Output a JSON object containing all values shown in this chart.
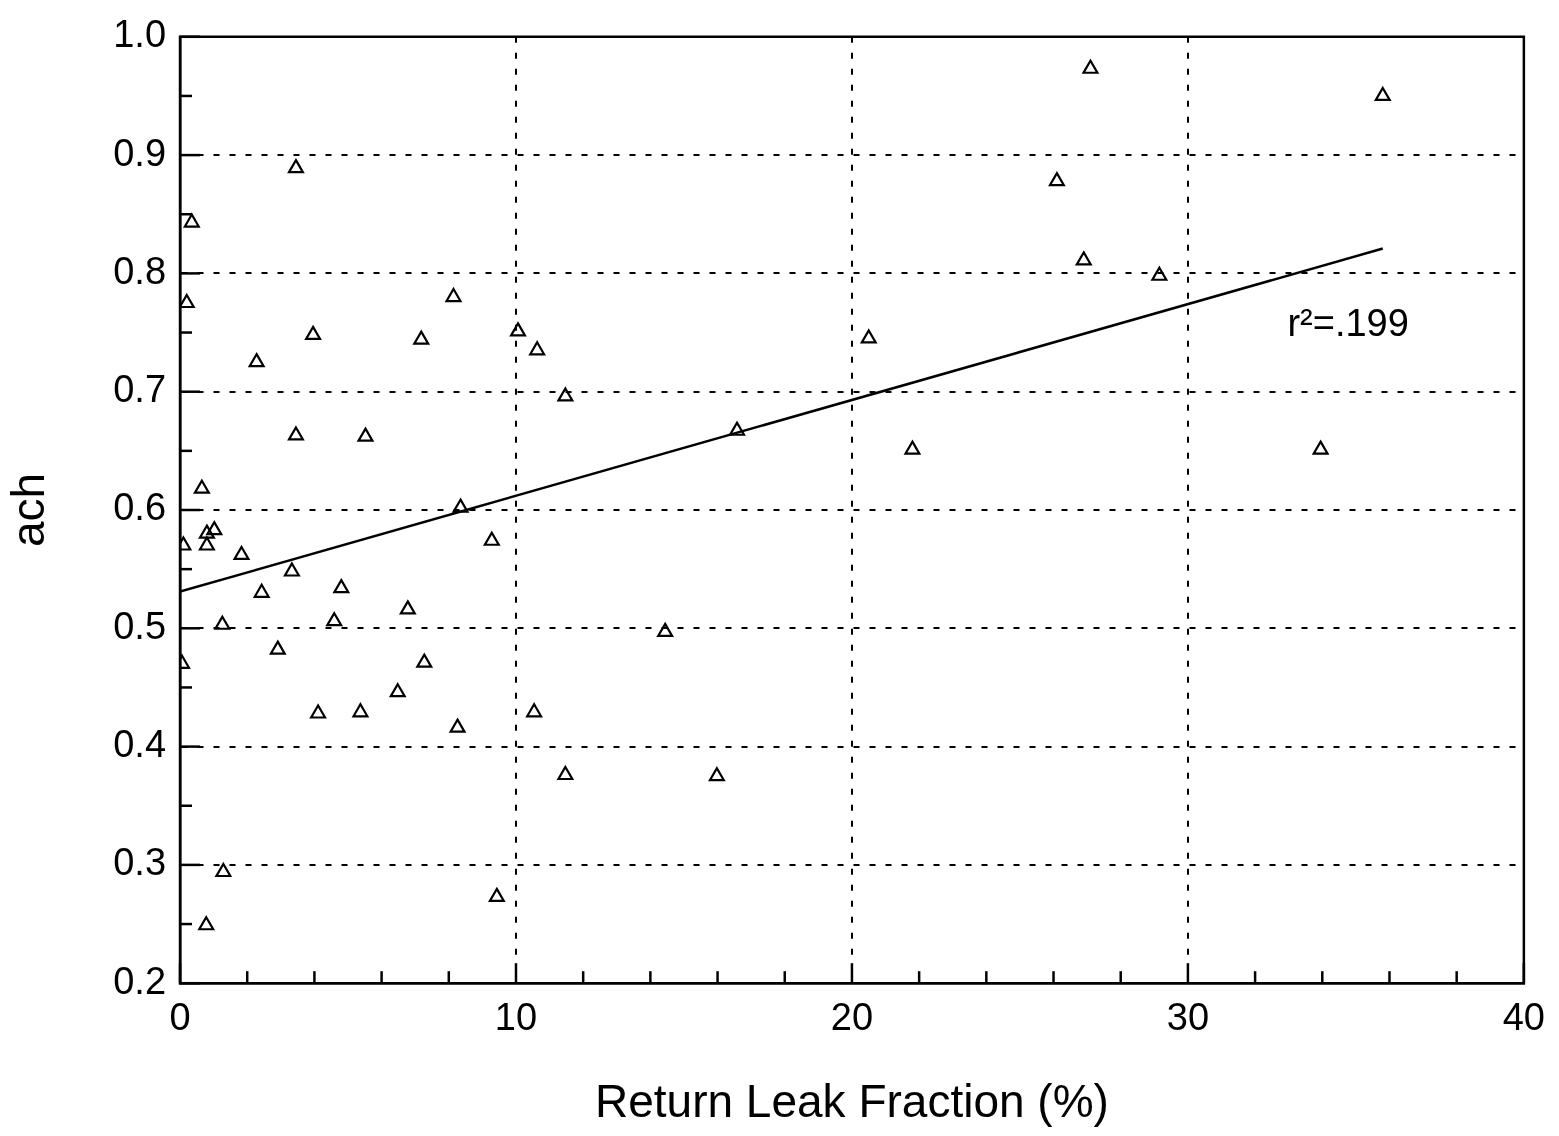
{
  "chart_data": {
    "type": "scatter",
    "xlabel": "Return Leak Fraction (%)",
    "ylabel": "ach",
    "xlim": [
      0,
      40
    ],
    "ylim": [
      0.2,
      1.0
    ],
    "xticks": [
      0,
      {
        "value": 2,
        "label": null
      },
      {
        "value": 4,
        "label": null
      },
      {
        "value": 6,
        "label": null
      },
      {
        "value": 8,
        "label": null
      },
      10,
      {
        "value": 12,
        "label": null
      },
      {
        "value": 14,
        "label": null
      },
      {
        "value": 16,
        "label": null
      },
      {
        "value": 18,
        "label": null
      },
      20,
      {
        "value": 22,
        "label": null
      },
      {
        "value": 24,
        "label": null
      },
      {
        "value": 26,
        "label": null
      },
      {
        "value": 28,
        "label": null
      },
      30,
      {
        "value": 32,
        "label": null
      },
      {
        "value": 34,
        "label": null
      },
      {
        "value": 36,
        "label": null
      },
      {
        "value": 38,
        "label": null
      },
      40
    ],
    "yticks": [
      0.2,
      {
        "value": 0.25,
        "label": null
      },
      0.3,
      {
        "value": 0.35,
        "label": null
      },
      0.4,
      {
        "value": 0.45,
        "label": null
      },
      0.5,
      {
        "value": 0.55,
        "label": null
      },
      0.6,
      {
        "value": 0.65,
        "label": null
      },
      0.7,
      {
        "value": 0.75,
        "label": null
      },
      0.8,
      {
        "value": 0.85,
        "label": null
      },
      0.9,
      {
        "value": 0.95,
        "label": null
      },
      {
        "value": 1.0,
        "label": "1.0"
      }
    ],
    "grid": true,
    "legend": false,
    "marker": "triangle",
    "series": [
      {
        "color": "#000000",
        "x": [
          0.06,
          0.1,
          0.2,
          0.35,
          0.65,
          0.8,
          0.8,
          1.02,
          1.26,
          1.29,
          0.78,
          1.83,
          2.28,
          2.43,
          2.91,
          3.33,
          3.45,
          3.45,
          3.96,
          4.11,
          4.59,
          4.8,
          5.37,
          5.52,
          6.48,
          6.78,
          7.18,
          7.27,
          8.14,
          8.26,
          8.35,
          9.28,
          9.43,
          10.06,
          10.54,
          10.63,
          11.47,
          11.47,
          14.44,
          15.98,
          16.58,
          20.5,
          21.8,
          26.1,
          26.9,
          27.1,
          29.15,
          33.95,
          35.8
        ],
        "values": [
          0.47,
          0.57,
          0.775,
          0.843,
          0.618,
          0.57,
          0.58,
          0.583,
          0.503,
          0.294,
          0.249,
          0.562,
          0.725,
          0.53,
          0.482,
          0.548,
          0.889,
          0.663,
          0.748,
          0.428,
          0.506,
          0.534,
          0.429,
          0.662,
          0.446,
          0.516,
          0.744,
          0.471,
          0.78,
          0.416,
          0.602,
          0.574,
          0.273,
          0.751,
          0.429,
          0.735,
          0.696,
          0.376,
          0.497,
          0.375,
          0.667,
          0.745,
          0.651,
          0.878,
          0.811,
          0.973,
          0.798,
          0.651,
          0.95
        ]
      },
      {
        "type": "line",
        "color": "#000000",
        "marker": "none",
        "line_style": "solid",
        "x": [
          0,
          35.8
        ],
        "values": [
          0.531,
          0.821
        ]
      }
    ],
    "annotations": [
      "r²=.199"
    ]
  }
}
